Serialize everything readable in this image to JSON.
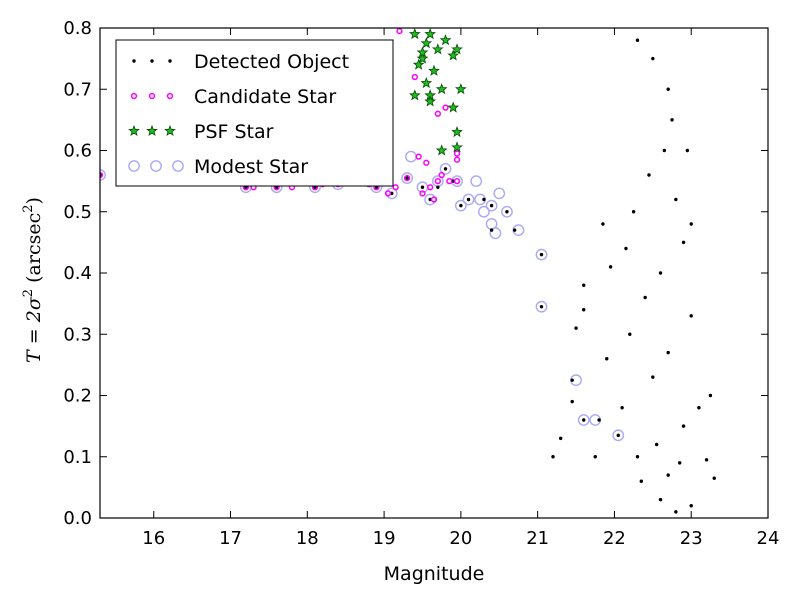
{
  "chart_data": {
    "type": "scatter",
    "xlabel": "Magnitude",
    "ylabel": {
      "T": "T",
      "eq": " = 2σ",
      "sup2": "2",
      "paren_open": " (arcsec",
      "paren_close": ")"
    },
    "xlim": [
      15.3,
      24.0
    ],
    "ylim": [
      0.0,
      0.8
    ],
    "xticks": [
      "16",
      "17",
      "18",
      "19",
      "20",
      "21",
      "22",
      "23",
      "24"
    ],
    "yticks": [
      "0.0",
      "0.1",
      "0.2",
      "0.3",
      "0.4",
      "0.5",
      "0.6",
      "0.7",
      "0.8"
    ],
    "legend_position": "top-left",
    "series": [
      {
        "name": "Detected Object",
        "marker": "dot",
        "color": "#000000",
        "points": [
          [
            15.3,
            0.56
          ],
          [
            15.9,
            0.56
          ],
          [
            16.5,
            0.56
          ],
          [
            17.2,
            0.54
          ],
          [
            17.6,
            0.54
          ],
          [
            18.1,
            0.54
          ],
          [
            18.9,
            0.54
          ],
          [
            19.1,
            0.53
          ],
          [
            19.3,
            0.555
          ],
          [
            19.5,
            0.54
          ],
          [
            19.6,
            0.52
          ],
          [
            19.7,
            0.54
          ],
          [
            19.8,
            0.57
          ],
          [
            19.9,
            0.55
          ],
          [
            20.0,
            0.51
          ],
          [
            20.1,
            0.52
          ],
          [
            20.3,
            0.52
          ],
          [
            20.4,
            0.47
          ],
          [
            20.4,
            0.51
          ],
          [
            20.6,
            0.5
          ],
          [
            20.7,
            0.47
          ],
          [
            21.05,
            0.43
          ],
          [
            21.05,
            0.345
          ],
          [
            21.45,
            0.225
          ],
          [
            21.6,
            0.16
          ],
          [
            21.8,
            0.16
          ],
          [
            22.05,
            0.135
          ],
          [
            21.3,
            0.13
          ],
          [
            21.5,
            0.31
          ],
          [
            21.6,
            0.38
          ],
          [
            21.75,
            0.1
          ],
          [
            22.1,
            0.18
          ],
          [
            22.3,
            0.1
          ],
          [
            22.6,
            0.03
          ],
          [
            22.8,
            0.01
          ],
          [
            23.0,
            0.02
          ],
          [
            23.2,
            0.095
          ],
          [
            23.3,
            0.065
          ],
          [
            22.9,
            0.15
          ],
          [
            23.1,
            0.18
          ],
          [
            23.25,
            0.2
          ],
          [
            22.7,
            0.07
          ],
          [
            22.85,
            0.09
          ],
          [
            22.5,
            0.23
          ],
          [
            22.7,
            0.27
          ],
          [
            23.0,
            0.33
          ],
          [
            22.4,
            0.36
          ],
          [
            22.6,
            0.4
          ],
          [
            22.9,
            0.45
          ],
          [
            23.0,
            0.48
          ],
          [
            22.8,
            0.52
          ],
          [
            22.95,
            0.6
          ],
          [
            22.7,
            0.7
          ],
          [
            22.5,
            0.75
          ],
          [
            22.3,
            0.78
          ],
          [
            21.2,
            0.1
          ],
          [
            21.45,
            0.19
          ],
          [
            21.9,
            0.26
          ],
          [
            22.2,
            0.3
          ],
          [
            22.55,
            0.12
          ],
          [
            22.35,
            0.06
          ],
          [
            21.95,
            0.41
          ],
          [
            22.15,
            0.44
          ],
          [
            21.6,
            0.34
          ],
          [
            21.85,
            0.48
          ],
          [
            22.25,
            0.5
          ],
          [
            22.45,
            0.56
          ],
          [
            22.65,
            0.6
          ],
          [
            22.75,
            0.65
          ]
        ]
      },
      {
        "name": "Candidate Star",
        "marker": "ring",
        "color": "#ff00ff",
        "points": [
          [
            15.3,
            0.56
          ],
          [
            16.5,
            0.555
          ],
          [
            17.2,
            0.54
          ],
          [
            17.3,
            0.54
          ],
          [
            17.6,
            0.54
          ],
          [
            17.8,
            0.54
          ],
          [
            18.1,
            0.54
          ],
          [
            18.2,
            0.545
          ],
          [
            18.4,
            0.545
          ],
          [
            18.8,
            0.545
          ],
          [
            18.9,
            0.54
          ],
          [
            19.05,
            0.53
          ],
          [
            19.15,
            0.54
          ],
          [
            19.2,
            0.795
          ],
          [
            19.3,
            0.555
          ],
          [
            19.4,
            0.72
          ],
          [
            19.5,
            0.53
          ],
          [
            19.55,
            0.58
          ],
          [
            19.6,
            0.54
          ],
          [
            19.65,
            0.52
          ],
          [
            19.7,
            0.55
          ],
          [
            19.85,
            0.55
          ],
          [
            19.95,
            0.55
          ],
          [
            19.95,
            0.585
          ],
          [
            19.95,
            0.595
          ],
          [
            19.75,
            0.56
          ],
          [
            19.8,
            0.67
          ],
          [
            19.45,
            0.59
          ],
          [
            19.7,
            0.66
          ]
        ]
      },
      {
        "name": "PSF Star",
        "marker": "star",
        "color": "#22bb22",
        "points": [
          [
            19.4,
            0.79
          ],
          [
            19.55,
            0.775
          ],
          [
            19.6,
            0.79
          ],
          [
            19.5,
            0.75
          ],
          [
            19.45,
            0.74
          ],
          [
            19.65,
            0.73
          ],
          [
            19.55,
            0.71
          ],
          [
            19.4,
            0.69
          ],
          [
            19.6,
            0.69
          ],
          [
            19.5,
            0.76
          ],
          [
            19.7,
            0.765
          ],
          [
            19.75,
            0.7
          ],
          [
            19.8,
            0.78
          ],
          [
            19.95,
            0.765
          ],
          [
            19.9,
            0.755
          ],
          [
            19.95,
            0.63
          ],
          [
            20.0,
            0.7
          ],
          [
            19.95,
            0.605
          ],
          [
            19.75,
            0.6
          ],
          [
            19.9,
            0.67
          ],
          [
            19.6,
            0.68
          ]
        ]
      },
      {
        "name": "Modest Star",
        "marker": "hollow",
        "color": "#a9a9f5",
        "points": [
          [
            15.3,
            0.56
          ],
          [
            15.9,
            0.58
          ],
          [
            16.5,
            0.555
          ],
          [
            17.2,
            0.54
          ],
          [
            17.6,
            0.54
          ],
          [
            18.1,
            0.54
          ],
          [
            18.4,
            0.545
          ],
          [
            18.9,
            0.54
          ],
          [
            19.1,
            0.53
          ],
          [
            19.3,
            0.555
          ],
          [
            19.35,
            0.59
          ],
          [
            19.5,
            0.54
          ],
          [
            19.6,
            0.52
          ],
          [
            19.7,
            0.55
          ],
          [
            19.8,
            0.57
          ],
          [
            19.95,
            0.55
          ],
          [
            20.0,
            0.51
          ],
          [
            20.1,
            0.52
          ],
          [
            20.25,
            0.52
          ],
          [
            20.3,
            0.5
          ],
          [
            20.4,
            0.51
          ],
          [
            20.45,
            0.465
          ],
          [
            20.4,
            0.48
          ],
          [
            20.6,
            0.5
          ],
          [
            20.75,
            0.47
          ],
          [
            21.05,
            0.43
          ],
          [
            21.05,
            0.345
          ],
          [
            21.5,
            0.225
          ],
          [
            21.6,
            0.16
          ],
          [
            21.75,
            0.16
          ],
          [
            22.05,
            0.135
          ],
          [
            20.5,
            0.53
          ],
          [
            20.2,
            0.55
          ]
        ]
      }
    ]
  }
}
